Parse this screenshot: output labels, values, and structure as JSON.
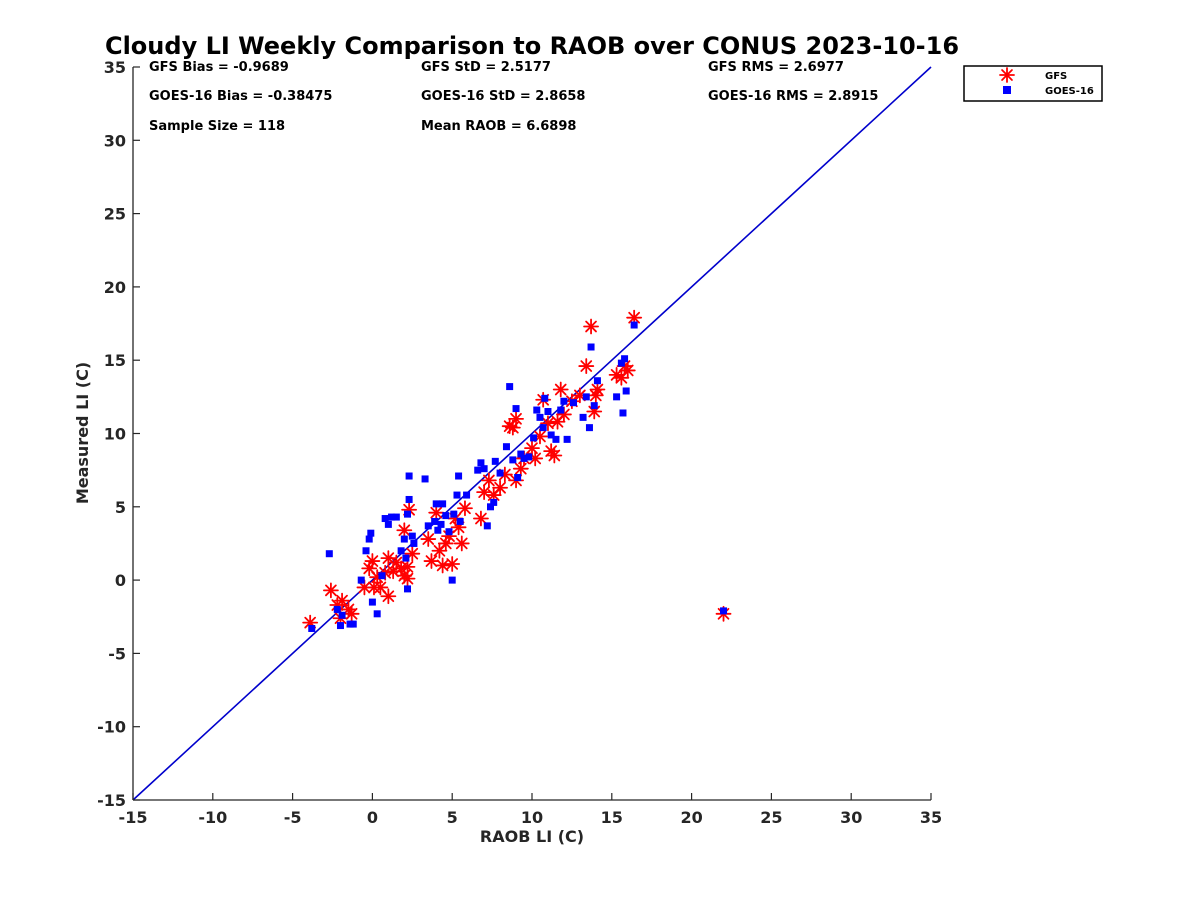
{
  "chart_data": {
    "type": "scatter",
    "title": "Cloudy LI Weekly Comparison to RAOB over CONUS 2023-10-16",
    "xlabel": "RAOB LI (C)",
    "ylabel": "Measured LI (C)",
    "xlim": [
      -15,
      35
    ],
    "ylim": [
      -15,
      35
    ],
    "x_ticks": [
      -15,
      -10,
      -5,
      0,
      5,
      10,
      15,
      20,
      25,
      30,
      35
    ],
    "y_ticks": [
      -15,
      -10,
      -5,
      0,
      5,
      10,
      15,
      20,
      25,
      30,
      35
    ],
    "x_tick_labels": [
      "-15",
      "-10",
      "-5",
      "0",
      "5",
      "10",
      "15",
      "20",
      "25",
      "30",
      "35"
    ],
    "y_tick_labels": [
      "-15",
      "-10",
      "-5",
      "0",
      "5",
      "10",
      "15",
      "20",
      "25",
      "30",
      "35"
    ],
    "grid": false,
    "legend_position": "top-right, outside plot",
    "reference_line": {
      "from": [
        -15,
        -15
      ],
      "to": [
        35,
        35
      ],
      "color": "#0000cc"
    },
    "stats": [
      {
        "text": "GFS Bias = -0.9689"
      },
      {
        "text": "GFS StD = 2.5177"
      },
      {
        "text": "GFS RMS = 2.6977"
      },
      {
        "text": "GOES-16 Bias = -0.38475"
      },
      {
        "text": "GOES-16 StD = 2.8658"
      },
      {
        "text": "GOES-16 RMS = 2.8915"
      },
      {
        "text": "Sample Size = 118"
      },
      {
        "text": "Mean RAOB = 6.6898"
      }
    ],
    "series": [
      {
        "name": "GFS",
        "marker": "asterisk",
        "color": "#ff0000",
        "points": [
          [
            -3.9,
            -2.9
          ],
          [
            -2.6,
            -0.7
          ],
          [
            -2.2,
            -1.7
          ],
          [
            -1.9,
            -1.4
          ],
          [
            -1.5,
            -2.0
          ],
          [
            -1.3,
            -2.3
          ],
          [
            -2.0,
            -2.6
          ],
          [
            -0.5,
            -0.5
          ],
          [
            -0.2,
            0.8
          ],
          [
            0.0,
            1.3
          ],
          [
            0.1,
            -0.5
          ],
          [
            0.3,
            0.2
          ],
          [
            0.5,
            -0.5
          ],
          [
            0.8,
            0.5
          ],
          [
            1.0,
            1.5
          ],
          [
            1.0,
            -1.1
          ],
          [
            1.3,
            0.6
          ],
          [
            1.5,
            1.2
          ],
          [
            1.8,
            0.8
          ],
          [
            2.0,
            0.3
          ],
          [
            2.0,
            3.4
          ],
          [
            2.2,
            0.9
          ],
          [
            2.2,
            0.1
          ],
          [
            2.3,
            4.8
          ],
          [
            2.5,
            1.8
          ],
          [
            3.5,
            2.8
          ],
          [
            3.7,
            1.3
          ],
          [
            4.0,
            4.6
          ],
          [
            4.2,
            2.0
          ],
          [
            4.4,
            1.0
          ],
          [
            4.6,
            2.5
          ],
          [
            4.8,
            3.0
          ],
          [
            5.0,
            1.1
          ],
          [
            5.2,
            4.2
          ],
          [
            5.4,
            3.6
          ],
          [
            5.6,
            2.5
          ],
          [
            5.8,
            4.9
          ],
          [
            6.8,
            4.2
          ],
          [
            7.0,
            6.0
          ],
          [
            7.3,
            6.8
          ],
          [
            7.6,
            5.8
          ],
          [
            8.0,
            6.3
          ],
          [
            8.3,
            7.2
          ],
          [
            8.6,
            10.5
          ],
          [
            8.8,
            10.4
          ],
          [
            9.0,
            11.0
          ],
          [
            9.0,
            6.8
          ],
          [
            9.3,
            7.6
          ],
          [
            9.5,
            8.3
          ],
          [
            10.0,
            9.0
          ],
          [
            10.2,
            8.3
          ],
          [
            10.5,
            9.8
          ],
          [
            10.7,
            12.3
          ],
          [
            11.0,
            10.7
          ],
          [
            11.2,
            8.8
          ],
          [
            11.4,
            8.5
          ],
          [
            11.6,
            10.8
          ],
          [
            11.8,
            13.0
          ],
          [
            12.0,
            11.3
          ],
          [
            12.5,
            12.2
          ],
          [
            13.0,
            12.6
          ],
          [
            13.4,
            14.6
          ],
          [
            13.7,
            17.3
          ],
          [
            13.9,
            11.5
          ],
          [
            14.0,
            12.6
          ],
          [
            14.1,
            13.0
          ],
          [
            15.3,
            14.0
          ],
          [
            15.6,
            13.8
          ],
          [
            15.8,
            14.6
          ],
          [
            16.0,
            14.3
          ],
          [
            16.4,
            17.9
          ],
          [
            22.0,
            -2.3
          ]
        ]
      },
      {
        "name": "GOES-16",
        "marker": "square",
        "color": "#0000ff",
        "points": [
          [
            -3.8,
            -3.3
          ],
          [
            -2.7,
            1.8
          ],
          [
            -2.2,
            -2.0
          ],
          [
            -2.0,
            -3.1
          ],
          [
            -1.9,
            -2.4
          ],
          [
            -1.4,
            -3.0
          ],
          [
            -1.2,
            -3.0
          ],
          [
            -0.7,
            0.0
          ],
          [
            -0.4,
            2.0
          ],
          [
            -0.2,
            2.8
          ],
          [
            -0.1,
            3.2
          ],
          [
            0.0,
            -1.5
          ],
          [
            0.3,
            -2.3
          ],
          [
            0.6,
            0.3
          ],
          [
            0.8,
            4.2
          ],
          [
            1.0,
            3.8
          ],
          [
            1.2,
            4.3
          ],
          [
            1.5,
            4.3
          ],
          [
            1.8,
            2.0
          ],
          [
            2.0,
            2.8
          ],
          [
            2.1,
            1.5
          ],
          [
            2.2,
            -0.6
          ],
          [
            2.2,
            4.5
          ],
          [
            2.3,
            7.1
          ],
          [
            2.3,
            5.5
          ],
          [
            2.5,
            3.0
          ],
          [
            2.6,
            2.5
          ],
          [
            3.3,
            6.9
          ],
          [
            3.5,
            3.7
          ],
          [
            3.9,
            4.0
          ],
          [
            4.0,
            5.2
          ],
          [
            4.1,
            3.4
          ],
          [
            4.3,
            3.8
          ],
          [
            4.4,
            5.2
          ],
          [
            4.6,
            4.4
          ],
          [
            4.8,
            3.3
          ],
          [
            5.0,
            0.0
          ],
          [
            5.1,
            4.5
          ],
          [
            5.3,
            5.8
          ],
          [
            5.4,
            7.1
          ],
          [
            5.5,
            4.0
          ],
          [
            5.9,
            5.8
          ],
          [
            6.6,
            7.5
          ],
          [
            6.8,
            8.0
          ],
          [
            7.0,
            7.6
          ],
          [
            7.2,
            3.7
          ],
          [
            7.4,
            5.0
          ],
          [
            7.6,
            5.3
          ],
          [
            7.7,
            8.1
          ],
          [
            8.0,
            7.3
          ],
          [
            8.4,
            9.1
          ],
          [
            8.6,
            13.2
          ],
          [
            8.8,
            8.2
          ],
          [
            9.0,
            11.7
          ],
          [
            9.1,
            7.0
          ],
          [
            9.3,
            8.6
          ],
          [
            9.5,
            8.3
          ],
          [
            9.8,
            8.4
          ],
          [
            10.1,
            9.7
          ],
          [
            10.3,
            11.6
          ],
          [
            10.5,
            11.1
          ],
          [
            10.7,
            10.4
          ],
          [
            10.8,
            12.4
          ],
          [
            11.0,
            11.5
          ],
          [
            11.2,
            9.9
          ],
          [
            11.5,
            9.6
          ],
          [
            11.8,
            11.6
          ],
          [
            12.0,
            12.2
          ],
          [
            12.2,
            9.6
          ],
          [
            12.6,
            12.1
          ],
          [
            13.2,
            11.1
          ],
          [
            13.4,
            12.5
          ],
          [
            13.6,
            10.4
          ],
          [
            13.7,
            15.9
          ],
          [
            13.9,
            11.9
          ],
          [
            14.1,
            13.6
          ],
          [
            15.3,
            12.5
          ],
          [
            15.6,
            14.8
          ],
          [
            15.7,
            11.4
          ],
          [
            15.8,
            15.1
          ],
          [
            15.9,
            12.9
          ],
          [
            16.4,
            17.4
          ],
          [
            22.0,
            -2.1
          ]
        ]
      }
    ]
  }
}
